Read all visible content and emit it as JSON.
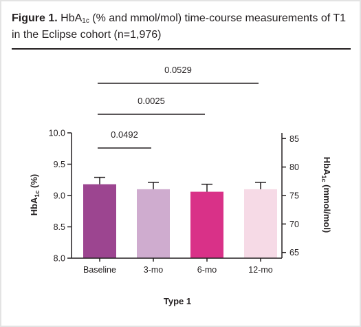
{
  "figure": {
    "label": "Figure 1.",
    "title_pre": "HbA",
    "title_sub": "1c",
    "title_post": " (% and mmol/mol) time-course measurements of T1 in the Eclipse cohort (n=1,976)"
  },
  "chart_data": {
    "type": "bar",
    "categories": [
      "Baseline",
      "3-mo",
      "6-mo",
      "12-mo"
    ],
    "values": [
      9.18,
      9.1,
      9.06,
      9.1
    ],
    "error_upper": [
      9.29,
      9.21,
      9.18,
      9.21
    ],
    "bar_colors": [
      "#9c4590",
      "#cfaccf",
      "#d93188",
      "#f6dae6"
    ],
    "xlabel": "Type 1",
    "ylabel_left": {
      "pre": "HbA",
      "sub": "1c",
      "post": " (%)"
    },
    "ylabel_right": {
      "pre": "HbA",
      "sub": "1c",
      "post": " (mmol/mol)"
    },
    "ylim": [
      8.0,
      10.0
    ],
    "yticks": [
      "8.0",
      "8.5",
      "9.0",
      "9.5",
      "10.0"
    ],
    "y2lim": [
      64.0,
      86.0
    ],
    "y2ticks": [
      "65",
      "70",
      "75",
      "80",
      "85"
    ],
    "grid": false,
    "significance": [
      {
        "from": "Baseline",
        "to": "12-mo",
        "label": "0.0529"
      },
      {
        "from": "Baseline",
        "to": "6-mo",
        "label": "0.0025"
      },
      {
        "from": "Baseline",
        "to": "3-mo",
        "label": "0.0492"
      }
    ]
  }
}
